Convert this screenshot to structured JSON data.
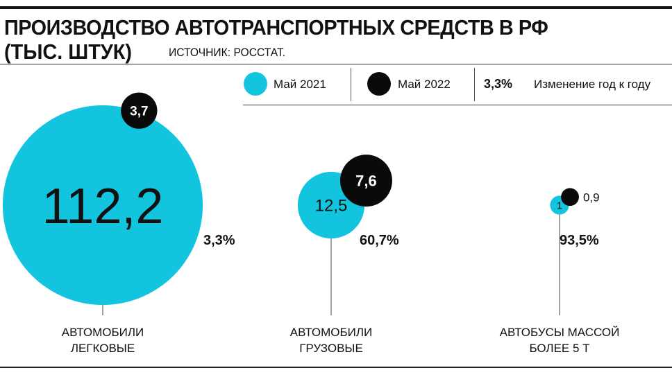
{
  "header": {
    "title_line1": "ПРОИЗВОДСТВО АВТОТРАНСПОРТНЫХ СРЕДСТВ В РФ",
    "title_line2": "(ТЫС. ШТУК)",
    "source": "ИСТОЧНИК: РОССТАТ."
  },
  "legend": {
    "series1": "Май 2021",
    "series2": "Май 2022",
    "change_example": "3,3%",
    "change_label": "Изменение год к году"
  },
  "colors": {
    "may2021": "#12C4DD",
    "may2022": "#0a0a0a"
  },
  "chart_data": {
    "type": "bubble",
    "title": "ПРОИЗВОДСТВО АВТОТРАНСПОРТНЫХ СРЕДСТВ В РФ (ТЫС. ШТУК)",
    "legend_placement": "top-right",
    "categories": [
      "АВТОМОБИЛИ ЛЕГКОВЫЕ",
      "АВТОМОБИЛИ ГРУЗОВЫЕ",
      "АВТОБУСЫ МАССОЙ БОЛЕЕ 5 Т"
    ],
    "category_lines": [
      [
        "АВТОМОБИЛИ",
        "ЛЕГКОВЫЕ"
      ],
      [
        "АВТОМОБИЛИ",
        "ГРУЗОВЫЕ"
      ],
      [
        "АВТОБУСЫ МАССОЙ",
        "БОЛЕЕ 5 Т"
      ]
    ],
    "series": [
      {
        "name": "Май 2021",
        "values": [
          112.2,
          12.5,
          1
        ],
        "labels": [
          "112,2",
          "12,5",
          "1"
        ]
      },
      {
        "name": "Май 2022",
        "values": [
          3.7,
          7.6,
          0.9
        ],
        "labels": [
          "3,7",
          "7,6",
          "0,9"
        ]
      }
    ],
    "change_labels": [
      "3,3%",
      "60,7%",
      "93,5%"
    ]
  }
}
